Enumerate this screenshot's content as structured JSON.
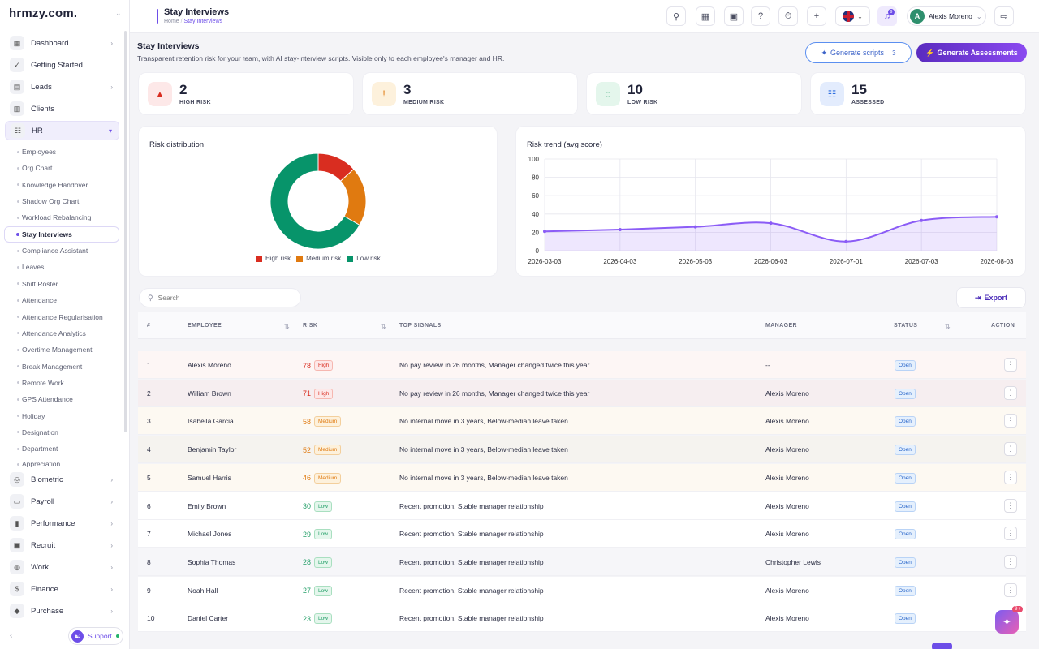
{
  "brand": {
    "logo": "hrmzy.com."
  },
  "sidebar": {
    "main_top": [
      {
        "label": "Dashboard",
        "icon": "grid-icon",
        "has_arrow": true
      },
      {
        "label": "Getting Started",
        "icon": "check-circle-icon",
        "has_arrow": false
      },
      {
        "label": "Leads",
        "icon": "id-card-icon",
        "has_arrow": true
      },
      {
        "label": "Clients",
        "icon": "bar-chart-icon",
        "has_arrow": false
      },
      {
        "label": "HR",
        "icon": "users-icon",
        "has_arrow": true
      }
    ],
    "hr_sub": [
      "Employees",
      "Org Chart",
      "Knowledge Handover",
      "Shadow Org Chart",
      "Workload Rebalancing",
      "Stay Interviews",
      "Compliance Assistant",
      "Leaves",
      "Shift Roster",
      "Attendance",
      "Attendance Regularisation",
      "Attendance Analytics",
      "Overtime Management",
      "Break Management",
      "Remote Work",
      "GPS Attendance",
      "Holiday",
      "Designation",
      "Department",
      "Appreciation"
    ],
    "active_sub": "Stay Interviews",
    "main_bottom": [
      {
        "label": "Biometric",
        "icon": "fingerprint-icon"
      },
      {
        "label": "Payroll",
        "icon": "wallet-icon"
      },
      {
        "label": "Performance",
        "icon": "chart-icon"
      },
      {
        "label": "Recruit",
        "icon": "briefcase-icon"
      },
      {
        "label": "Work",
        "icon": "work-icon"
      },
      {
        "label": "Finance",
        "icon": "dollar-icon"
      },
      {
        "label": "Purchase",
        "icon": "layers-icon"
      }
    ],
    "support_label": "Support"
  },
  "topbar": {
    "title": "Stay Interviews",
    "breadcrumb": [
      "Home",
      "Stay Interviews"
    ],
    "user_initial": "A",
    "user_name": "Alexis Moreno",
    "notification_badge": "9"
  },
  "page": {
    "title": "Stay Interviews",
    "subtitle": "Transparent retention risk for your team, with AI stay-interview scripts. Visible only to each employee's manager and HR.",
    "generate_scripts_label": "Generate scripts",
    "generate_scripts_count": "3",
    "generate_assessments_label": "Generate Assessments"
  },
  "stats": [
    {
      "value": "2",
      "label": "HIGH RISK",
      "icon": "warning-icon",
      "bg": "#fde8e8",
      "fg": "#d92d20"
    },
    {
      "value": "3",
      "label": "MEDIUM RISK",
      "icon": "alert-circle-icon",
      "bg": "#fdf1dc",
      "fg": "#e07a10"
    },
    {
      "value": "10",
      "label": "LOW RISK",
      "icon": "dashed-circle-icon",
      "bg": "#e4f6ec",
      "fg": "#26a06a"
    },
    {
      "value": "15",
      "label": "ASSESSED",
      "icon": "users-icon",
      "bg": "#e3ecfd",
      "fg": "#2f6fe0"
    }
  ],
  "risk_distribution": {
    "title": "Risk distribution",
    "chart_data": {
      "type": "pie",
      "categories": [
        "High risk",
        "Medium risk",
        "Low risk"
      ],
      "values": [
        2,
        3,
        10
      ],
      "colors": [
        "#d92d20",
        "#e07a10",
        "#07946a"
      ],
      "donut": true,
      "legend": "bottom"
    }
  },
  "risk_trend": {
    "title": "Risk trend (avg score)",
    "chart_data": {
      "type": "area",
      "x": [
        "2026-03-03",
        "2026-04-03",
        "2026-05-03",
        "2026-06-03",
        "2026-07-01",
        "2026-07-03",
        "2026-08-03"
      ],
      "values": [
        21,
        23,
        26,
        30,
        10,
        33,
        37
      ],
      "ylim": [
        0,
        100
      ],
      "yticks": [
        0,
        20,
        40,
        60,
        80,
        100
      ],
      "grid": true,
      "color": "#8b5cf6"
    }
  },
  "table": {
    "search_placeholder": "Search",
    "export_label": "Export",
    "columns": [
      "#",
      "EMPLOYEE",
      "RISK",
      "TOP SIGNALS",
      "MANAGER",
      "STATUS",
      "ACTION"
    ],
    "rows": [
      {
        "n": "1",
        "employee": "Alexis Moreno",
        "score": "78",
        "level": "High",
        "signals": "No pay review in 26 months, Manager changed twice this year",
        "manager": "--",
        "status": "Open"
      },
      {
        "n": "2",
        "employee": "William Brown",
        "score": "71",
        "level": "High",
        "signals": "No pay review in 26 months, Manager changed twice this year",
        "manager": "Alexis Moreno",
        "status": "Open"
      },
      {
        "n": "3",
        "employee": "Isabella Garcia",
        "score": "58",
        "level": "Medium",
        "signals": "No internal move in 3 years, Below-median leave taken",
        "manager": "Alexis Moreno",
        "status": "Open"
      },
      {
        "n": "4",
        "employee": "Benjamin Taylor",
        "score": "52",
        "level": "Medium",
        "signals": "No internal move in 3 years, Below-median leave taken",
        "manager": "Alexis Moreno",
        "status": "Open"
      },
      {
        "n": "5",
        "employee": "Samuel Harris",
        "score": "46",
        "level": "Medium",
        "signals": "No internal move in 3 years, Below-median leave taken",
        "manager": "Alexis Moreno",
        "status": "Open"
      },
      {
        "n": "6",
        "employee": "Emily Brown",
        "score": "30",
        "level": "Low",
        "signals": "Recent promotion, Stable manager relationship",
        "manager": "Alexis Moreno",
        "status": "Open"
      },
      {
        "n": "7",
        "employee": "Michael Jones",
        "score": "29",
        "level": "Low",
        "signals": "Recent promotion, Stable manager relationship",
        "manager": "Alexis Moreno",
        "status": "Open"
      },
      {
        "n": "8",
        "employee": "Sophia Thomas",
        "score": "28",
        "level": "Low",
        "signals": "Recent promotion, Stable manager relationship",
        "manager": "Christopher Lewis",
        "status": "Open"
      },
      {
        "n": "9",
        "employee": "Noah Hall",
        "score": "27",
        "level": "Low",
        "signals": "Recent promotion, Stable manager relationship",
        "manager": "Alexis Moreno",
        "status": "Open"
      },
      {
        "n": "10",
        "employee": "Daniel Carter",
        "score": "23",
        "level": "Low",
        "signals": "Recent promotion, Stable manager relationship",
        "manager": "Alexis Moreno",
        "status": "Open"
      }
    ]
  },
  "fab": {
    "badge": "9+"
  },
  "colors": {
    "accent": "#6d4ee8",
    "high": "#d92d20",
    "medium": "#e07a10",
    "low": "#26a06a"
  }
}
